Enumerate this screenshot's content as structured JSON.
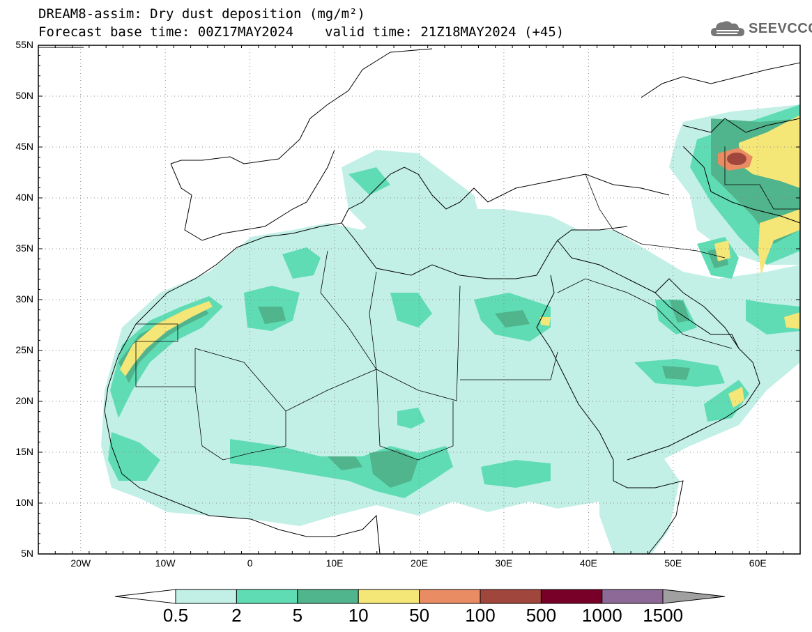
{
  "title": {
    "line1": "DREAM8-assim: Dry dust deposition (mg/m²)",
    "base_time": "Forecast base time: 00Z17MAY2024",
    "valid_time": "valid time: 21Z18MAY2024 (+45)"
  },
  "logo": {
    "text": "SEEVCCC",
    "icon": "cloud-icon"
  },
  "axes": {
    "lat_labels": [
      "55N",
      "50N",
      "45N",
      "40N",
      "35N",
      "30N",
      "25N",
      "20N",
      "15N",
      "10N",
      "5N"
    ],
    "lon_labels": [
      "20W",
      "10W",
      "0",
      "10E",
      "20E",
      "30E",
      "40E",
      "50E",
      "60E"
    ],
    "lat_range": [
      5,
      55
    ],
    "lon_range": [
      -25,
      65
    ]
  },
  "colorbar": {
    "labels": [
      "0.5",
      "2",
      "5",
      "10",
      "50",
      "100",
      "500",
      "1000",
      "1500"
    ],
    "colors": [
      "#c2f0e6",
      "#5fdcb4",
      "#50b48c",
      "#f5e678",
      "#e98c64",
      "#a0463c",
      "#780028",
      "#8c6996",
      "#a0a0a0"
    ]
  },
  "grid": {
    "dotted_graticule": true
  }
}
